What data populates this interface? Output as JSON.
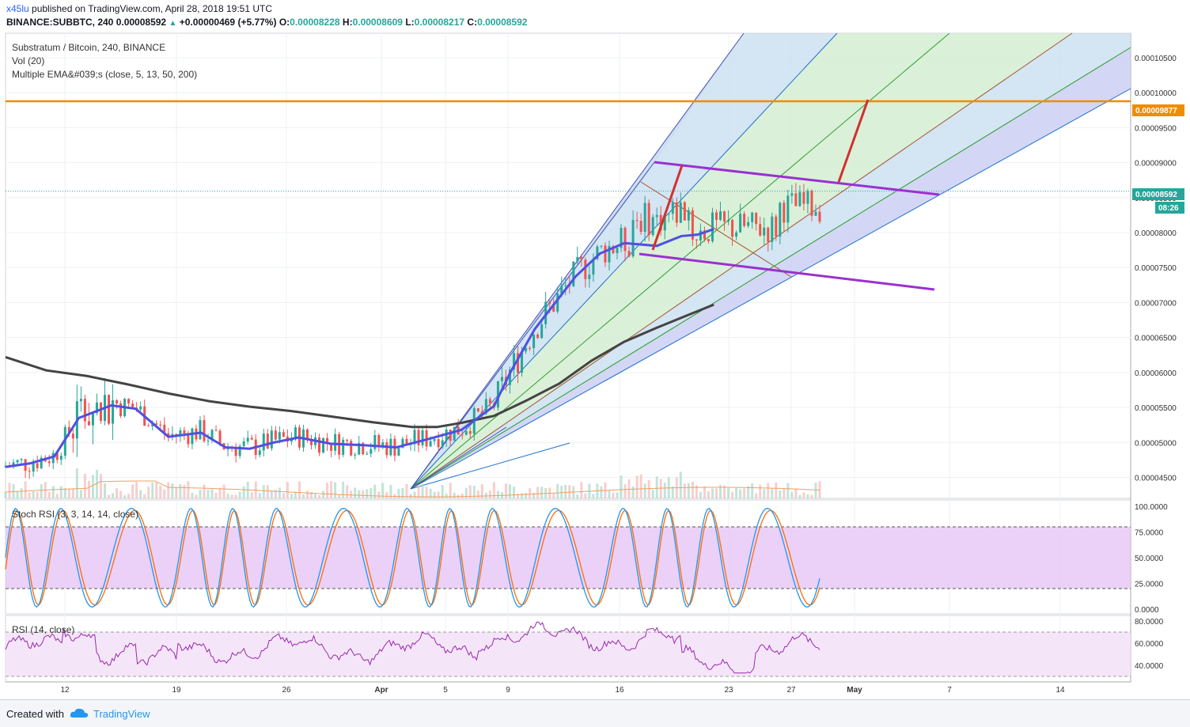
{
  "header": {
    "user": "x45lu",
    "published": "published on TradingView.com, April 28, 2018 19:51 UTC",
    "symbol": "BINANCE:SUBBTC, 240",
    "last": "0.00008592",
    "change": "+0.00000469 (+5.77%)",
    "o_label": "O:",
    "o": "0.00008228",
    "h_label": "H:",
    "h": "0.00008609",
    "l_label": "L:",
    "l": "0.00008217",
    "c_label": "C:",
    "c": "0.00008592"
  },
  "legend": {
    "title": "Substratum / Bitcoin, 240, BINANCE",
    "vol": "Vol (20)",
    "ema": "Multiple EMA&#039;s (close, 5, 13, 50, 200)",
    "stoch": "Stoch RSI (3, 3, 14, 14, close)",
    "rsi": "RSI (14, close)"
  },
  "price_labels": {
    "resistance": "0.00009877",
    "current": "0.00008592",
    "countdown": "08:26"
  },
  "footer": {
    "created_with": "Created with",
    "brand": "TradingView"
  },
  "colors": {
    "up": "#26a69a",
    "down": "#ef5350",
    "ema50": "#5050e0",
    "ema200": "#444444",
    "resistance": "#f08c00",
    "channel": "#9c27b0",
    "arrow": "#d32f2f",
    "stoch_k": "#2196f3",
    "stoch_d": "#ff6d00",
    "rsi": "#9c27b0"
  },
  "chart_data": [
    {
      "type": "line",
      "panel": "price",
      "y_ticks": [
        "0.00010500",
        "0.00010000",
        "0.00009500",
        "0.00009000",
        "0.00008500",
        "0.00008000",
        "0.00007500",
        "0.00007000",
        "0.00006500",
        "0.00006000",
        "0.00005500",
        "0.00005000",
        "0.00004500"
      ],
      "x_ticks": [
        "12",
        "19",
        "26",
        "Apr",
        "5",
        "9",
        "16",
        "23",
        "27",
        "May",
        "7",
        "14"
      ],
      "ylim": [
        4.2e-05,
        0.0001085
      ],
      "resistance_level": 9.877e-05,
      "last_price": 8.592e-05,
      "series": [
        {
          "values_ema200": [
            [
              0.0,
              6.22e-05
            ],
            [
              0.05,
              6.03e-05
            ],
            [
              0.1,
              5.95e-05
            ],
            [
              0.15,
              5.83e-05
            ],
            [
              0.2,
              5.7e-05
            ],
            [
              0.25,
              5.59e-05
            ],
            [
              0.3,
              5.51e-05
            ],
            [
              0.35,
              5.45e-05
            ],
            [
              0.4,
              5.37e-05
            ],
            [
              0.45,
              5.29e-05
            ],
            [
              0.5,
              5.22e-05
            ],
            [
              0.53,
              5.22e-05
            ],
            [
              0.56,
              5.28e-05
            ],
            [
              0.6,
              5.38e-05
            ],
            [
              0.64,
              5.6e-05
            ],
            [
              0.68,
              5.84e-05
            ],
            [
              0.72,
              6.17e-05
            ],
            [
              0.76,
              6.44e-05
            ],
            [
              0.8,
              6.64e-05
            ],
            [
              0.84,
              6.83e-05
            ],
            [
              0.87,
              6.97e-05
            ]
          ]
        },
        {
          "values_ema50": [
            [
              0.0,
              4.65e-05
            ],
            [
              0.03,
              4.7e-05
            ],
            [
              0.06,
              4.8e-05
            ],
            [
              0.09,
              5.35e-05
            ],
            [
              0.13,
              5.53e-05
            ],
            [
              0.16,
              5.48e-05
            ],
            [
              0.2,
              5.08e-05
            ],
            [
              0.24,
              5.14e-05
            ],
            [
              0.27,
              4.93e-05
            ],
            [
              0.3,
              4.91e-05
            ],
            [
              0.33,
              5e-05
            ],
            [
              0.36,
              5.07e-05
            ],
            [
              0.4,
              4.98e-05
            ],
            [
              0.44,
              4.96e-05
            ],
            [
              0.48,
              4.93e-05
            ],
            [
              0.52,
              5.05e-05
            ],
            [
              0.56,
              5.18e-05
            ],
            [
              0.6,
              5.52e-05
            ],
            [
              0.62,
              6e-05
            ],
            [
              0.65,
              6.62e-05
            ],
            [
              0.7,
              7.37e-05
            ],
            [
              0.73,
              7.7e-05
            ],
            [
              0.76,
              7.85e-05
            ],
            [
              0.8,
              7.81e-05
            ],
            [
              0.83,
              7.95e-05
            ],
            [
              0.85,
              7.97e-05
            ],
            [
              0.87,
              8.05e-05
            ]
          ]
        }
      ]
    },
    {
      "type": "line",
      "panel": "stoch_rsi",
      "y_ticks": [
        "100.0000",
        "75.0000",
        "50.0000",
        "25.0000",
        "0.0000"
      ],
      "ylim": [
        0,
        100
      ],
      "bands": [
        80,
        20
      ]
    },
    {
      "type": "line",
      "panel": "rsi",
      "y_ticks": [
        "80.0000",
        "60.0000",
        "40.0000"
      ],
      "ylim": [
        30,
        80
      ],
      "bands": [
        70,
        30
      ]
    }
  ]
}
